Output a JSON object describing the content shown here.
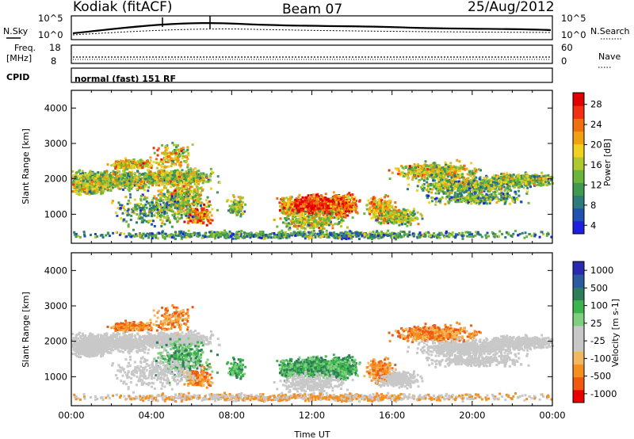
{
  "header": {
    "station": "Kodiak (fitACF)",
    "beam": "Beam 07",
    "date": "25/Aug/2012"
  },
  "top_panels": {
    "nsky_label": "N.Sky",
    "nsky_ticks": [
      "10^5",
      "10^0"
    ],
    "nsearch_label": "N.Search",
    "nsearch_ticks": [
      "10^5",
      "10^0"
    ],
    "freq_label_1": "Freq.",
    "freq_label_2": "[MHz]",
    "freq_ticks": [
      "18",
      "8"
    ],
    "nave_label": "Nave",
    "nave_ticks": [
      "60",
      "0"
    ],
    "cpid_label": "CPID",
    "cpid_text": "normal (fast) 151 RF"
  },
  "chart_data": [
    {
      "type": "heatmap",
      "title": "",
      "xlabel": "",
      "ylabel": "Slant Range [km]",
      "xlim": [
        "00:00",
        "24:00"
      ],
      "ylim": [
        180,
        4500
      ],
      "yticks": [
        "4000",
        "3000",
        "2000",
        "1000"
      ],
      "colorbar": {
        "label": "Power [dB]",
        "ticks": [
          "28",
          "24",
          "20",
          "16",
          "12",
          "8",
          "4"
        ],
        "range": [
          0,
          30
        ]
      },
      "colors": [
        "#1f1fe0",
        "#2050b0",
        "#2f7a7a",
        "#3f9a4f",
        "#6cb53c",
        "#b0c830",
        "#f0d020",
        "#f0a010",
        "#f07010",
        "#f03010",
        "#e00000"
      ]
    },
    {
      "type": "heatmap",
      "title": "",
      "xlabel": "Time UT",
      "ylabel": "Slant Range [km]",
      "xlim": [
        "00:00",
        "24:00"
      ],
      "ylim": [
        180,
        4500
      ],
      "yticks": [
        "4000",
        "3000",
        "2000",
        "1000"
      ],
      "xticks": [
        "00:00",
        "04:00",
        "08:00",
        "12:00",
        "16:00",
        "20:00",
        "00:00"
      ],
      "colorbar": {
        "label": "Velocity [m s-1]",
        "ticks": [
          "1000",
          "500",
          "100",
          "25",
          "-25",
          "-100",
          "-500",
          "-1000"
        ],
        "range": [
          -1000,
          1000
        ]
      },
      "colors": [
        "#e80000",
        "#f05a10",
        "#f59020",
        "#f2b860",
        "#c8c8c8",
        "#c8c8c8",
        "#7dd07d",
        "#3cb44b",
        "#2e7d5a",
        "#2a5aa0",
        "#2a2ab0"
      ]
    }
  ]
}
